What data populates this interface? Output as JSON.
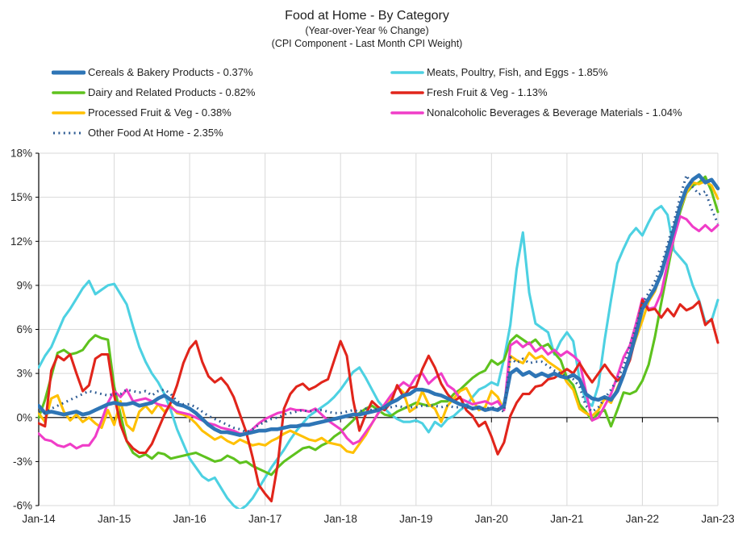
{
  "chart_data": {
    "type": "line",
    "title": "Food at Home - By Category",
    "subtitle1": "(Year-over-Year % Change)",
    "subtitle2": "(CPI Component - Last Month CPI Weight)",
    "x_unit": "month",
    "x_range": [
      "Jan-2014",
      "Jan-2023"
    ],
    "x_tick_labels": [
      "Jan-14",
      "Jan-15",
      "Jan-16",
      "Jan-17",
      "Jan-18",
      "Jan-19",
      "Jan-20",
      "Jan-21",
      "Jan-22",
      "Jan-23"
    ],
    "ylim": [
      -6,
      18
    ],
    "y_tick_values": [
      -6,
      -3,
      0,
      3,
      6,
      9,
      12,
      15,
      18
    ],
    "y_tick_labels": [
      "-6%",
      "-3%",
      "0%",
      "3%",
      "6%",
      "9%",
      "12%",
      "15%",
      "18%"
    ],
    "grid": true,
    "grid_color": "#D9D9D9",
    "axis_color": "#000000",
    "legend": {
      "position": "top",
      "left": [
        0,
        2,
        4,
        6
      ],
      "right": [
        1,
        3,
        5
      ]
    },
    "series": [
      {
        "key": "cereals-bakery",
        "name": "Cereals & Bakery Products - 0.37%",
        "color": "#2E75B6",
        "style": "solid",
        "thick": true,
        "values": [
          0.8,
          0.3,
          0.4,
          0.3,
          0.2,
          0.3,
          0.4,
          0.2,
          0.3,
          0.5,
          0.7,
          0.9,
          1.0,
          0.9,
          0.9,
          1.0,
          0.8,
          0.9,
          1.0,
          1.3,
          1.5,
          1.2,
          0.9,
          0.8,
          0.6,
          0.3,
          -0.1,
          -0.5,
          -0.8,
          -1.0,
          -1.0,
          -1.1,
          -1.2,
          -1.1,
          -1.0,
          -0.9,
          -0.9,
          -0.8,
          -0.8,
          -0.7,
          -0.6,
          -0.6,
          -0.5,
          -0.5,
          -0.4,
          -0.3,
          -0.2,
          -0.1,
          0.0,
          0.1,
          0.2,
          0.2,
          0.3,
          0.4,
          0.5,
          0.7,
          1.0,
          1.2,
          1.5,
          1.6,
          1.9,
          1.9,
          1.8,
          1.6,
          1.5,
          1.3,
          1.1,
          0.9,
          0.8,
          0.6,
          0.7,
          0.5,
          0.6,
          0.5,
          0.8,
          3.0,
          3.3,
          2.9,
          3.1,
          2.8,
          3.0,
          2.8,
          3.0,
          2.8,
          2.7,
          2.9,
          2.6,
          1.6,
          1.3,
          1.2,
          1.4,
          1.2,
          1.8,
          2.9,
          4.2,
          5.7,
          7.4,
          8.1,
          8.8,
          9.8,
          11.3,
          12.8,
          14.4,
          15.6,
          16.2,
          16.5,
          16.0,
          16.2,
          15.6
        ]
      },
      {
        "key": "meats-poultry-fish-eggs",
        "name": "Meats, Poultry, Fish, and Eggs - 1.85%",
        "color": "#4DD1E2",
        "style": "solid",
        "thick": false,
        "values": [
          3.4,
          4.2,
          4.8,
          5.8,
          6.8,
          7.4,
          8.1,
          8.8,
          9.3,
          8.4,
          8.7,
          9.0,
          9.1,
          8.4,
          7.7,
          6.2,
          4.8,
          3.8,
          3.0,
          2.4,
          1.6,
          0.5,
          -0.8,
          -1.8,
          -2.8,
          -3.4,
          -4.0,
          -4.3,
          -4.1,
          -4.8,
          -5.5,
          -6.0,
          -6.3,
          -6.0,
          -5.5,
          -4.8,
          -4.1,
          -3.4,
          -2.8,
          -2.2,
          -1.5,
          -0.9,
          -0.4,
          0.1,
          0.4,
          0.7,
          1.0,
          1.4,
          1.9,
          2.5,
          3.1,
          3.4,
          2.7,
          1.9,
          1.1,
          0.6,
          0.2,
          -0.1,
          -0.3,
          -0.3,
          -0.2,
          -0.4,
          -1.0,
          -0.3,
          -0.6,
          -0.1,
          0.1,
          0.5,
          0.8,
          1.4,
          1.9,
          2.1,
          2.4,
          2.2,
          4.0,
          6.3,
          10.1,
          12.6,
          8.5,
          6.4,
          6.1,
          5.8,
          4.3,
          5.2,
          5.8,
          5.2,
          2.6,
          1.1,
          0.8,
          2.2,
          5.3,
          8.0,
          10.5,
          11.5,
          12.4,
          12.9,
          12.4,
          13.3,
          14.1,
          14.4,
          13.8,
          11.4,
          10.9,
          10.4,
          9.0,
          8.0,
          6.5,
          6.6,
          8.0
        ]
      },
      {
        "key": "dairy",
        "name": "Dairy and Related Products - 0.82%",
        "color": "#5EC21E",
        "style": "solid",
        "thick": false,
        "values": [
          0.0,
          1.2,
          2.8,
          4.4,
          4.6,
          4.3,
          4.4,
          4.6,
          5.2,
          5.6,
          5.4,
          5.3,
          2.1,
          0.2,
          -1.6,
          -2.4,
          -2.7,
          -2.5,
          -2.8,
          -2.4,
          -2.5,
          -2.8,
          -2.7,
          -2.6,
          -2.5,
          -2.4,
          -2.6,
          -2.8,
          -3.0,
          -2.9,
          -2.6,
          -2.8,
          -3.1,
          -3.0,
          -3.3,
          -3.5,
          -3.7,
          -3.9,
          -3.4,
          -3.0,
          -2.7,
          -2.4,
          -2.1,
          -2.0,
          -2.2,
          -1.9,
          -1.7,
          -1.3,
          -1.0,
          -0.6,
          -0.2,
          0.3,
          0.6,
          0.8,
          0.5,
          0.2,
          0.1,
          0.4,
          0.6,
          0.8,
          1.0,
          0.9,
          0.8,
          0.9,
          1.1,
          1.1,
          1.6,
          1.9,
          2.3,
          2.7,
          3.0,
          3.2,
          3.9,
          3.6,
          3.9,
          5.2,
          5.6,
          5.3,
          5.0,
          5.3,
          4.8,
          5.0,
          4.4,
          3.9,
          2.7,
          2.2,
          0.9,
          0.4,
          -0.2,
          0.3,
          0.5,
          -0.6,
          0.5,
          1.7,
          1.6,
          1.8,
          2.5,
          3.6,
          5.5,
          7.8,
          10.0,
          12.2,
          14.0,
          15.3,
          15.8,
          16.0,
          16.4,
          15.4,
          14.0
        ]
      },
      {
        "key": "fresh-fruit-veg",
        "name": "Fresh Fruit & Veg - 1.13%",
        "color": "#E1251B",
        "style": "solid",
        "thick": false,
        "values": [
          -0.4,
          -0.6,
          3.2,
          4.2,
          3.9,
          4.3,
          3.0,
          1.8,
          2.2,
          4.0,
          4.3,
          4.3,
          1.5,
          -0.5,
          -1.6,
          -2.1,
          -2.4,
          -2.4,
          -1.8,
          -0.8,
          0.2,
          1.0,
          2.2,
          3.7,
          4.7,
          5.2,
          3.8,
          2.8,
          2.4,
          2.7,
          2.2,
          1.4,
          0.2,
          -1.0,
          -2.7,
          -4.6,
          -5.2,
          -5.7,
          -3.2,
          0.6,
          1.6,
          2.1,
          2.3,
          1.9,
          2.1,
          2.4,
          2.6,
          3.9,
          5.2,
          4.2,
          1.2,
          -0.9,
          0.2,
          1.1,
          0.7,
          0.5,
          1.0,
          2.2,
          1.4,
          2.0,
          2.1,
          3.3,
          4.2,
          3.4,
          2.3,
          1.6,
          1.1,
          1.4,
          0.5,
          0.1,
          -0.6,
          -0.3,
          -1.3,
          -2.5,
          -1.7,
          0.1,
          1.0,
          1.6,
          1.6,
          2.1,
          2.2,
          2.6,
          2.7,
          3.0,
          3.3,
          3.0,
          3.7,
          3.0,
          2.4,
          3.0,
          3.6,
          3.0,
          2.5,
          2.9,
          3.9,
          5.6,
          8.0,
          7.3,
          7.4,
          6.8,
          7.4,
          6.9,
          7.7,
          7.3,
          7.5,
          7.9,
          6.3,
          6.7,
          5.1
        ]
      },
      {
        "key": "processed-fruit-veg",
        "name": "Processed Fruit & Veg - 0.38%",
        "color": "#FFC000",
        "style": "solid",
        "thick": false,
        "values": [
          0.3,
          -0.3,
          1.3,
          1.5,
          0.4,
          -0.2,
          0.2,
          -0.3,
          0.0,
          -0.4,
          -0.7,
          0.5,
          -0.5,
          1.1,
          -0.5,
          -0.9,
          0.4,
          0.8,
          0.3,
          0.9,
          0.4,
          0.8,
          0.3,
          0.2,
          0.0,
          -0.4,
          -0.9,
          -1.2,
          -1.5,
          -1.3,
          -1.6,
          -1.8,
          -1.5,
          -1.7,
          -1.9,
          -1.8,
          -1.9,
          -1.6,
          -1.4,
          -1.1,
          -0.9,
          -1.1,
          -1.3,
          -1.5,
          -1.6,
          -1.4,
          -1.7,
          -1.8,
          -1.9,
          -2.3,
          -2.4,
          -1.8,
          -1.2,
          -0.4,
          0.3,
          0.8,
          1.3,
          2.1,
          1.7,
          0.4,
          0.7,
          1.8,
          0.9,
          0.6,
          -0.3,
          0.8,
          1.3,
          1.8,
          2.0,
          1.2,
          0.5,
          0.7,
          1.8,
          1.4,
          0.5,
          4.2,
          3.9,
          3.7,
          4.4,
          4.0,
          4.2,
          3.8,
          3.5,
          3.2,
          2.4,
          1.9,
          0.6,
          0.3,
          0.1,
          0.5,
          1.3,
          1.0,
          2.0,
          3.0,
          4.2,
          5.4,
          6.6,
          7.9,
          8.6,
          9.9,
          11.4,
          12.8,
          14.2,
          15.3,
          16.0,
          15.9,
          16.1,
          15.8,
          14.9
        ]
      },
      {
        "key": "nonalcoholic-beverages",
        "name": "Nonalcoholic Beverages & Beverage Materials - 1.04%",
        "color": "#F03DC8",
        "style": "solid",
        "thick": false,
        "values": [
          -1.1,
          -1.5,
          -1.6,
          -1.9,
          -2.0,
          -1.8,
          -2.1,
          -1.9,
          -1.9,
          -1.3,
          -0.2,
          1.0,
          1.8,
          1.4,
          1.9,
          1.1,
          1.2,
          1.3,
          1.1,
          0.9,
          0.8,
          0.7,
          0.4,
          0.3,
          0.2,
          0.0,
          -0.2,
          -0.4,
          -0.5,
          -0.7,
          -0.8,
          -0.9,
          -1.1,
          -1.1,
          -0.8,
          -0.4,
          -0.1,
          0.1,
          0.3,
          0.4,
          0.6,
          0.5,
          0.5,
          0.4,
          0.6,
          0.2,
          -0.2,
          -0.5,
          -0.8,
          -1.4,
          -1.8,
          -1.6,
          -1.0,
          -0.4,
          0.3,
          0.9,
          1.5,
          2.0,
          2.4,
          2.1,
          2.8,
          3.0,
          2.3,
          2.7,
          3.0,
          2.2,
          1.9,
          1.3,
          1.1,
          0.9,
          1.0,
          1.1,
          0.9,
          1.1,
          0.5,
          4.9,
          5.2,
          4.8,
          5.1,
          4.5,
          4.8,
          4.3,
          4.6,
          4.2,
          4.5,
          4.2,
          3.8,
          1.8,
          -0.2,
          0.0,
          0.8,
          1.6,
          2.8,
          4.1,
          4.9,
          6.4,
          8.1,
          7.4,
          7.5,
          8.5,
          10.5,
          12.2,
          13.7,
          13.5,
          13.0,
          12.7,
          13.1,
          12.7,
          13.1
        ]
      },
      {
        "key": "other-food-at-home",
        "name": "Other Food At Home - 2.35%",
        "color": "#2E5C94",
        "style": "dotted",
        "thick": false,
        "values": [
          0.4,
          0.3,
          0.6,
          0.8,
          1.0,
          1.2,
          1.4,
          1.6,
          1.8,
          1.7,
          1.6,
          1.5,
          1.6,
          1.6,
          1.9,
          1.8,
          1.7,
          1.8,
          1.5,
          1.8,
          1.9,
          1.6,
          1.1,
          0.9,
          0.9,
          0.7,
          0.4,
          0.1,
          -0.1,
          -0.3,
          -0.5,
          -0.7,
          -0.8,
          -1.0,
          -0.8,
          -0.5,
          -0.3,
          -0.1,
          0.0,
          0.2,
          0.3,
          0.4,
          0.5,
          0.4,
          0.5,
          0.5,
          0.4,
          0.3,
          0.3,
          0.4,
          0.5,
          0.4,
          0.6,
          0.5,
          0.6,
          0.6,
          0.7,
          0.8,
          0.7,
          0.7,
          0.7,
          0.8,
          0.8,
          0.8,
          0.7,
          0.8,
          0.7,
          0.7,
          0.7,
          0.6,
          0.6,
          0.6,
          0.7,
          0.6,
          0.4,
          4.1,
          3.7,
          4.0,
          3.7,
          3.8,
          3.8,
          3.5,
          3.2,
          3.0,
          2.8,
          2.6,
          2.1,
          0.8,
          0.4,
          0.7,
          1.3,
          1.9,
          2.6,
          3.5,
          4.9,
          6.2,
          7.8,
          8.5,
          9.3,
          10.3,
          11.8,
          13.3,
          15.0,
          16.5,
          15.7,
          15.2,
          15.4,
          14.2,
          13.2
        ]
      }
    ]
  }
}
